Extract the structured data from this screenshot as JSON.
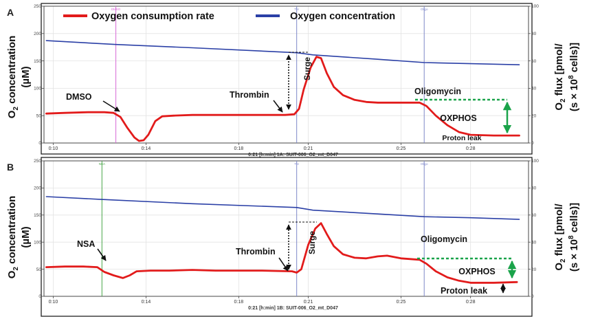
{
  "legend": {
    "entries": [
      {
        "label": "Oxygen consumption rate",
        "color": "#e21b1b"
      },
      {
        "label": "Oxygen concentration",
        "color": "#2a3fa6"
      }
    ],
    "placement": "top-left inside panel A"
  },
  "axis_titles": {
    "left_line1": "O",
    "left_sub": "2",
    "left_line1_rest": " concentration",
    "left_line2": "(µM)",
    "right_line1_pre": "O",
    "right_line1_sub": "2",
    "right_line1_post": " flux [pmol/",
    "right_line2_pre": "(s × 10",
    "right_line2_sup": "8",
    "right_line2_post": " cells)]"
  },
  "colors": {
    "ocr": "#e21b1b",
    "o2": "#2a3fa6",
    "dmso_marker": "#d86ad8",
    "nsa_marker": "#47a447",
    "event_marker": "#7d86c8",
    "oxphos_arrow": "#1aa34a",
    "frame": "#1f1f1f"
  },
  "chart_data": [
    {
      "type": "line",
      "panel": "A",
      "x_axis_title": "0:21 [h:min] 1A: SUIT-006_O2_mt_D047",
      "x_ticks": [
        "0:10",
        "0:14",
        "0:18",
        "0:21",
        "0:25",
        "0:28"
      ],
      "x_tick_minutes": [
        10,
        14,
        18,
        21,
        25,
        28
      ],
      "xlim_minutes": [
        9.6,
        30.5
      ],
      "left_ylim": [
        0,
        250
      ],
      "left_ticks": [
        "0",
        "50",
        "100",
        "150",
        "200",
        "250"
      ],
      "right_ylim": [
        0,
        100
      ],
      "right_ticks": [
        "0",
        "20",
        "40",
        "60",
        "80",
        "100"
      ],
      "grid": true,
      "markers": [
        {
          "label": "DMSO",
          "minute": 12.7,
          "kind": "dmso"
        },
        {
          "label": "Thr",
          "minute": 20.5,
          "kind": "event"
        },
        {
          "label": "Oligo",
          "minute": 26.0,
          "kind": "event"
        }
      ],
      "annotations": [
        "DMSO",
        "Thrombin",
        "Surge",
        "Oligomycin",
        "OXPHOS",
        "Proton leak"
      ],
      "series": [
        {
          "name": "Oxygen consumption rate",
          "axis": "right",
          "points": [
            [
              9.7,
              21.5
            ],
            [
              10.5,
              22
            ],
            [
              11.5,
              22.5
            ],
            [
              12.2,
              22.5
            ],
            [
              12.6,
              22
            ],
            [
              12.9,
              19
            ],
            [
              13.2,
              11
            ],
            [
              13.5,
              4
            ],
            [
              13.7,
              1.5
            ],
            [
              13.9,
              2
            ],
            [
              14.1,
              6
            ],
            [
              14.4,
              16
            ],
            [
              14.7,
              19.5
            ],
            [
              15.2,
              20
            ],
            [
              16,
              20.5
            ],
            [
              17,
              20.5
            ],
            [
              18,
              20.5
            ],
            [
              19,
              20.5
            ],
            [
              20,
              20.5
            ],
            [
              20.4,
              21
            ],
            [
              20.6,
              25
            ],
            [
              20.8,
              39
            ],
            [
              21.1,
              55
            ],
            [
              21.35,
              63
            ],
            [
              21.55,
              62
            ],
            [
              21.8,
              51
            ],
            [
              22.1,
              41
            ],
            [
              22.5,
              35
            ],
            [
              23,
              31.5
            ],
            [
              23.5,
              30
            ],
            [
              24,
              29.5
            ],
            [
              25,
              29.5
            ],
            [
              25.8,
              29.5
            ],
            [
              26.1,
              27
            ],
            [
              26.5,
              20
            ],
            [
              27,
              13
            ],
            [
              27.5,
              8
            ],
            [
              28,
              6
            ],
            [
              29,
              5.5
            ],
            [
              30.1,
              5.5
            ]
          ]
        },
        {
          "name": "Oxygen concentration",
          "axis": "left",
          "points": [
            [
              9.7,
              187
            ],
            [
              12.7,
              180
            ],
            [
              16,
              174
            ],
            [
              20.5,
              165
            ],
            [
              21.2,
              161
            ],
            [
              24,
              153
            ],
            [
              26,
              147
            ],
            [
              28,
              145
            ],
            [
              30.1,
              143
            ]
          ]
        }
      ]
    },
    {
      "type": "line",
      "panel": "B",
      "x_axis_title": "0:21 [h:min] 1B: SUIT-006_O2_mt_D047",
      "x_ticks": [
        "0:10",
        "0:14",
        "0:18",
        "0:21",
        "0:25",
        "0:28"
      ],
      "x_tick_minutes": [
        10,
        14,
        18,
        21,
        25,
        28
      ],
      "xlim_minutes": [
        9.6,
        30.5
      ],
      "left_ylim": [
        0,
        250
      ],
      "left_ticks": [
        "0",
        "50",
        "100",
        "150",
        "200",
        "250"
      ],
      "right_ylim": [
        0,
        100
      ],
      "right_ticks": [
        "0",
        "20",
        "40",
        "60",
        "80",
        "100"
      ],
      "grid": true,
      "markers": [
        {
          "label": "NSA",
          "minute": 12.1,
          "kind": "nsa"
        },
        {
          "label": "Thr",
          "minute": 20.5,
          "kind": "event"
        },
        {
          "label": "Oligo",
          "minute": 26.0,
          "kind": "event"
        }
      ],
      "annotations": [
        "NSA",
        "Thrombin",
        "Surge",
        "Oligomycin",
        "OXPHOS",
        "Proton leak"
      ],
      "series": [
        {
          "name": "Oxygen consumption rate",
          "axis": "right",
          "points": [
            [
              9.7,
              21.5
            ],
            [
              10.5,
              22
            ],
            [
              11.3,
              22
            ],
            [
              11.9,
              21.5
            ],
            [
              12.2,
              18
            ],
            [
              12.6,
              15.5
            ],
            [
              13,
              13.5
            ],
            [
              13.3,
              15.5
            ],
            [
              13.6,
              18.5
            ],
            [
              14.2,
              19
            ],
            [
              15,
              19
            ],
            [
              16,
              19.5
            ],
            [
              17,
              19
            ],
            [
              18,
              19
            ],
            [
              19,
              19
            ],
            [
              20.3,
              18.5
            ],
            [
              20.5,
              17.5
            ],
            [
              20.7,
              20
            ],
            [
              21,
              38
            ],
            [
              21.3,
              50
            ],
            [
              21.55,
              54
            ],
            [
              21.8,
              46
            ],
            [
              22.1,
              37
            ],
            [
              22.5,
              31
            ],
            [
              23,
              28.5
            ],
            [
              23.5,
              28
            ],
            [
              24,
              29.5
            ],
            [
              24.4,
              30
            ],
            [
              25,
              28
            ],
            [
              25.8,
              27
            ],
            [
              26.1,
              24
            ],
            [
              26.5,
              18.5
            ],
            [
              27,
              14
            ],
            [
              27.5,
              11.5
            ],
            [
              28,
              10
            ],
            [
              29,
              10
            ],
            [
              30,
              10.5
            ]
          ]
        },
        {
          "name": "Oxygen concentration",
          "axis": "left",
          "points": [
            [
              9.7,
              184
            ],
            [
              12,
              179
            ],
            [
              16,
              171
            ],
            [
              20.5,
              164
            ],
            [
              21.2,
              159
            ],
            [
              24,
              152
            ],
            [
              26,
              147
            ],
            [
              28,
              145
            ],
            [
              30.1,
              142
            ]
          ]
        }
      ]
    }
  ]
}
